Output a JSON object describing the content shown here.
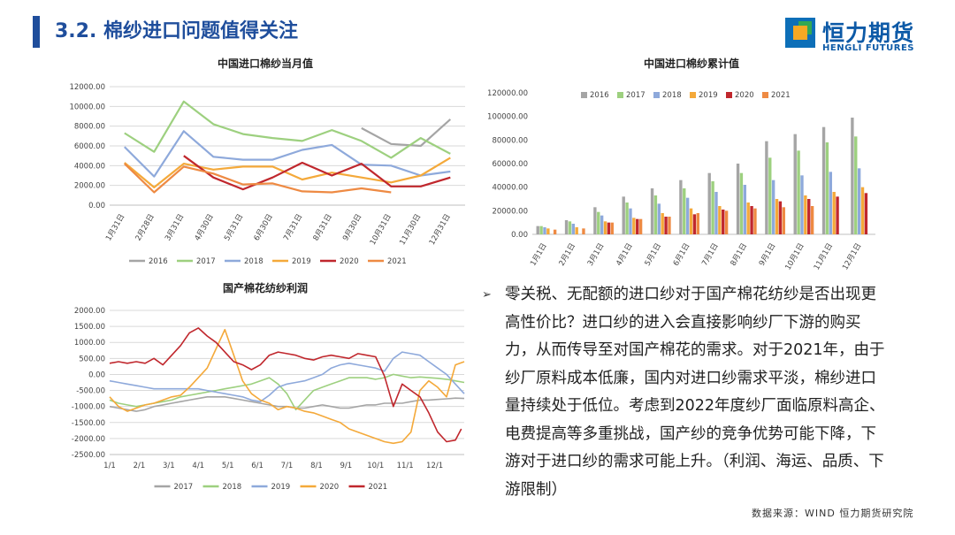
{
  "header": {
    "title": "3.2. 棉纱进口问题值得关注"
  },
  "logo": {
    "name": "恒力期货",
    "english": "HENGLI FUTURES"
  },
  "bullet": {
    "text": "零关税、无配额的进口纱对于国产棉花纺纱是否出现更高性价比？进口纱的进入会直接影响纱厂下游的购买力，从而传导至对国产棉花的需求。对于2021年，由于纱厂原料成本低廉，国内对进口纱需求平淡，棉纱进口量持续处于低位。考虑到2022年度纱厂面临原料高企、电费提高等多重挑战，国产纱的竞争优势可能下降，下游对于进口纱的需求可能上升。（利润、海运、品质、下游限制）"
  },
  "source": {
    "text": "数据来源：WIND 恒力期货研究院"
  },
  "colors": {
    "s2016": "#a5a5a5",
    "s2017": "#9dd07f",
    "s2018": "#8ea9db",
    "s2019": "#f4a93a",
    "s2020": "#c0272d",
    "s2021": "#ee8a43",
    "title_blue": "#1f4e9c"
  },
  "chart_data": [
    {
      "type": "line",
      "title": "中国进口棉纱当月值",
      "categories": [
        "1月31日",
        "2月28日",
        "3月31日",
        "4月30日",
        "5月31日",
        "6月30日",
        "7月31日",
        "8月31日",
        "9月30日",
        "10月31日",
        "11月30日",
        "12月31日"
      ],
      "yticks": [
        "12000.00",
        "10000.00",
        "8000.00",
        "6000.00",
        "4000.00",
        "2000.00",
        "0.00"
      ],
      "ylim": [
        0,
        12000
      ],
      "grid": true,
      "legend_position": "bottom",
      "series": [
        {
          "name": "2016",
          "color": "#a5a5a5",
          "values": [
            null,
            null,
            null,
            null,
            null,
            null,
            null,
            null,
            7800,
            6200,
            6000,
            8700
          ]
        },
        {
          "name": "2017",
          "color": "#9dd07f",
          "values": [
            7300,
            5400,
            10500,
            8200,
            7200,
            6800,
            6500,
            7600,
            6500,
            4800,
            6800,
            5200
          ]
        },
        {
          "name": "2018",
          "color": "#8ea9db",
          "values": [
            5900,
            2900,
            7500,
            4900,
            4600,
            4600,
            5600,
            6100,
            4100,
            4000,
            3000,
            3400
          ]
        },
        {
          "name": "2019",
          "color": "#f4a93a",
          "values": [
            4300,
            1800,
            4200,
            3600,
            3900,
            3900,
            2600,
            3300,
            2800,
            2300,
            3000,
            4800
          ]
        },
        {
          "name": "2020",
          "color": "#c0272d",
          "values": [
            null,
            null,
            5000,
            2800,
            1600,
            2800,
            4300,
            3000,
            4200,
            1900,
            1900,
            2800
          ]
        },
        {
          "name": "2021",
          "color": "#ee8a43",
          "values": [
            4200,
            1300,
            3900,
            3200,
            2100,
            2200,
            1400,
            1300,
            1700,
            1300,
            null,
            null
          ]
        }
      ]
    },
    {
      "type": "bar",
      "title": "中国进口棉纱累计值",
      "categories": [
        "1月1日",
        "2月1日",
        "3月1日",
        "4月1日",
        "5月1日",
        "6月1日",
        "7月1日",
        "8月1日",
        "9月1日",
        "10月1日",
        "11月1日",
        "12月1日"
      ],
      "yticks": [
        "120000.00",
        "100000.00",
        "80000.00",
        "60000.00",
        "40000.00",
        "20000.00",
        "0.00"
      ],
      "ylim": [
        0,
        120000
      ],
      "grid": false,
      "legend_position": "top",
      "series": [
        {
          "name": "2016",
          "color": "#a5a5a5",
          "values": [
            7000,
            12000,
            23000,
            32000,
            39000,
            46000,
            52000,
            60000,
            79000,
            85000,
            91000,
            99000
          ]
        },
        {
          "name": "2017",
          "color": "#9dd07f",
          "values": [
            7000,
            11000,
            19000,
            27000,
            33000,
            39000,
            45000,
            52000,
            65000,
            71000,
            78000,
            83000
          ]
        },
        {
          "name": "2018",
          "color": "#8ea9db",
          "values": [
            6000,
            9000,
            16000,
            22000,
            26000,
            31000,
            36000,
            42000,
            46000,
            50000,
            53000,
            56000
          ]
        },
        {
          "name": "2019",
          "color": "#f4a93a",
          "values": [
            5000,
            6000,
            11000,
            14000,
            18000,
            22000,
            24000,
            27000,
            30000,
            33000,
            36000,
            40000
          ]
        },
        {
          "name": "2020",
          "color": "#c0272d",
          "values": [
            null,
            null,
            10000,
            13000,
            15000,
            17000,
            21000,
            24000,
            28000,
            30000,
            32000,
            35000
          ]
        },
        {
          "name": "2021",
          "color": "#ee8a43",
          "values": [
            4000,
            5000,
            10000,
            13000,
            15000,
            18000,
            20000,
            22000,
            23000,
            24000,
            null,
            null
          ]
        }
      ]
    },
    {
      "type": "line",
      "title": "国产棉花纺纱利润",
      "categories": [
        "1/1",
        "2/1",
        "3/1",
        "4/1",
        "5/1",
        "6/1",
        "7/1",
        "8/1",
        "9/1",
        "10/1",
        "11/1",
        "12/1"
      ],
      "yticks": [
        "2000.00",
        "1500.00",
        "1000.00",
        "500.00",
        "0.00",
        "-500.00",
        "-1000.00",
        "-1500.00",
        "-2000.00",
        "-2500.00"
      ],
      "ylim": [
        -2500,
        2000
      ],
      "grid": true,
      "legend_position": "bottom",
      "series": [
        {
          "name": "2017",
          "color": "#a5a5a5",
          "x": [
            0,
            0.3,
            0.6,
            0.9,
            1.2,
            1.5,
            1.8,
            2.1,
            2.4,
            2.7,
            3.0,
            3.3,
            3.6,
            3.9,
            4.2,
            4.5,
            4.8,
            5.1,
            5.4,
            5.7,
            6.0,
            6.3,
            6.6,
            6.9,
            7.2,
            7.5,
            7.8,
            8.1,
            8.4,
            8.7,
            9.0,
            9.3,
            9.6,
            9.9,
            10.2,
            10.5,
            10.8,
            11.1,
            11.4,
            11.7,
            12.0
          ],
          "values": [
            -1000,
            -1050,
            -1100,
            -1150,
            -1100,
            -1000,
            -950,
            -900,
            -850,
            -800,
            -750,
            -700,
            -700,
            -700,
            -750,
            -800,
            -850,
            -900,
            -950,
            -1000,
            -1000,
            -1050,
            -1050,
            -1000,
            -950,
            -1000,
            -1050,
            -1050,
            -1000,
            -950,
            -950,
            -900,
            -900,
            -900,
            -850,
            -800,
            -800,
            -780,
            -760,
            -740,
            -750
          ]
        },
        {
          "name": "2018",
          "color": "#9dd07f",
          "x": [
            0,
            0.3,
            0.6,
            0.9,
            1.2,
            1.5,
            1.8,
            2.1,
            2.4,
            2.7,
            3.0,
            3.3,
            3.6,
            3.9,
            4.2,
            4.5,
            4.8,
            5.1,
            5.4,
            5.7,
            6.0,
            6.3,
            6.6,
            6.9,
            7.2,
            7.5,
            7.8,
            8.1,
            8.4,
            8.7,
            9.0,
            9.3,
            9.6,
            9.9,
            10.2,
            10.5,
            10.8,
            11.1,
            11.4,
            11.7,
            12.0
          ],
          "values": [
            -800,
            -900,
            -950,
            -1000,
            -950,
            -900,
            -850,
            -800,
            -700,
            -650,
            -600,
            -550,
            -500,
            -450,
            -400,
            -350,
            -300,
            -200,
            -100,
            -300,
            -600,
            -1100,
            -800,
            -500,
            -400,
            -300,
            -200,
            -100,
            -100,
            -100,
            -150,
            -100,
            0,
            -50,
            -100,
            -80,
            -100,
            -120,
            -150,
            -200,
            -250
          ]
        },
        {
          "name": "2019",
          "color": "#8ea9db",
          "x": [
            0,
            0.3,
            0.6,
            0.9,
            1.2,
            1.5,
            1.8,
            2.1,
            2.4,
            2.7,
            3.0,
            3.3,
            3.6,
            3.9,
            4.2,
            4.5,
            4.8,
            5.1,
            5.4,
            5.7,
            6.0,
            6.3,
            6.6,
            6.9,
            7.2,
            7.5,
            7.8,
            8.1,
            8.4,
            8.7,
            9.0,
            9.3,
            9.6,
            9.9,
            10.2,
            10.5,
            10.8,
            11.1,
            11.4,
            11.7,
            12.0
          ],
          "values": [
            -200,
            -250,
            -300,
            -350,
            -400,
            -450,
            -450,
            -450,
            -450,
            -450,
            -450,
            -500,
            -550,
            -600,
            -650,
            -700,
            -800,
            -850,
            -650,
            -400,
            -300,
            -250,
            -200,
            -100,
            0,
            200,
            300,
            350,
            300,
            250,
            200,
            100,
            500,
            700,
            650,
            600,
            400,
            200,
            0,
            -300,
            -600
          ]
        },
        {
          "name": "2020",
          "color": "#f4a93a",
          "x": [
            0,
            0.3,
            0.6,
            0.9,
            1.2,
            1.5,
            1.8,
            2.1,
            2.4,
            2.7,
            3.0,
            3.3,
            3.6,
            3.9,
            4.2,
            4.5,
            4.8,
            5.1,
            5.4,
            5.7,
            6.0,
            6.3,
            6.6,
            6.9,
            7.2,
            7.5,
            7.8,
            8.1,
            8.4,
            8.7,
            9.0,
            9.3,
            9.6,
            9.9,
            10.2,
            10.5,
            10.8,
            11.1,
            11.4,
            11.7,
            12.0
          ],
          "values": [
            -700,
            -1000,
            -1150,
            -1050,
            -950,
            -900,
            -800,
            -700,
            -650,
            -400,
            -100,
            200,
            800,
            1400,
            600,
            -200,
            -600,
            -800,
            -900,
            -1100,
            -1000,
            -1050,
            -1150,
            -1200,
            -1300,
            -1400,
            -1500,
            -1700,
            -1800,
            -1900,
            -2000,
            -2100,
            -2150,
            -2100,
            -1800,
            -500,
            -200,
            -400,
            -700,
            300,
            400
          ]
        },
        {
          "name": "2021",
          "color": "#c0272d",
          "x": [
            0,
            0.3,
            0.6,
            0.9,
            1.2,
            1.5,
            1.8,
            2.1,
            2.4,
            2.7,
            3.0,
            3.3,
            3.6,
            3.9,
            4.2,
            4.5,
            4.8,
            5.1,
            5.4,
            5.7,
            6.0,
            6.3,
            6.6,
            6.9,
            7.2,
            7.5,
            7.8,
            8.1,
            8.4,
            8.7,
            9.0,
            9.3,
            9.6,
            9.9,
            10.2,
            10.5,
            10.8,
            11.1,
            11.4,
            11.7,
            11.9
          ],
          "values": [
            350,
            400,
            350,
            400,
            350,
            500,
            300,
            600,
            900,
            1300,
            1450,
            1200,
            1000,
            700,
            400,
            300,
            150,
            300,
            600,
            700,
            650,
            600,
            500,
            450,
            550,
            600,
            550,
            500,
            650,
            600,
            550,
            -50,
            -1000,
            -300,
            -500,
            -700,
            -1200,
            -1800,
            -2100,
            -2050,
            -1700
          ]
        }
      ]
    }
  ]
}
